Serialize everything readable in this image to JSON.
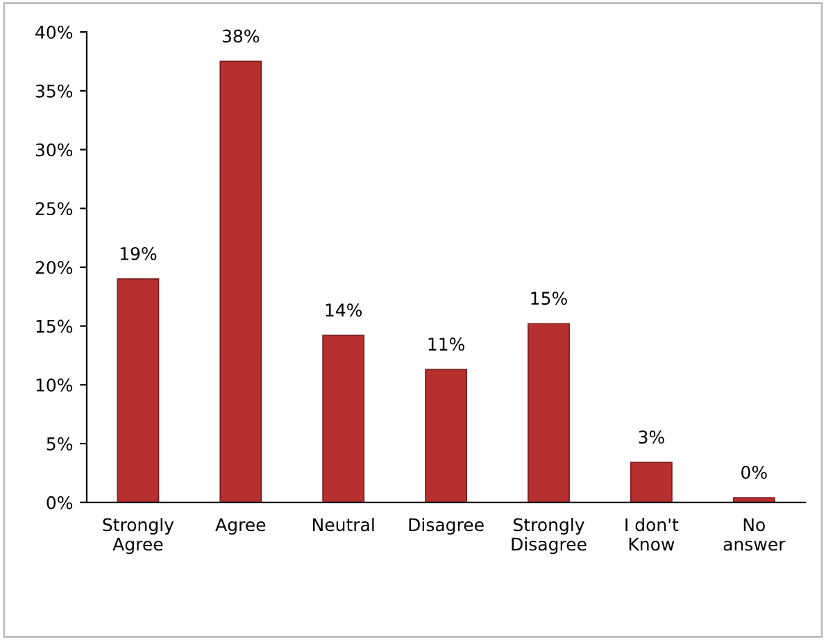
{
  "chart_data": {
    "type": "bar",
    "categories": [
      "Strongly\nAgree",
      "Agree",
      "Neutral",
      "Disagree",
      "Strongly\nDisagree",
      "I don't\nKnow",
      "No\nanswer"
    ],
    "values": [
      19,
      37.5,
      14.2,
      11.3,
      15.2,
      3.4,
      0.4
    ],
    "value_labels": [
      "19%",
      "38%",
      "14%",
      "11%",
      "15%",
      "3%",
      "0%"
    ],
    "color": "#b5302e",
    "ylim": [
      0,
      40
    ],
    "yticks": [
      {
        "value": 0,
        "label": "0%"
      },
      {
        "value": 5,
        "label": "5%"
      },
      {
        "value": 10,
        "label": "10%"
      },
      {
        "value": 15,
        "label": "15%"
      },
      {
        "value": 20,
        "label": "20%"
      },
      {
        "value": 25,
        "label": "25%"
      },
      {
        "value": 30,
        "label": "30%"
      },
      {
        "value": 35,
        "label": "35%"
      },
      {
        "value": 40,
        "label": "40%"
      }
    ],
    "grid": false,
    "legend": false
  }
}
